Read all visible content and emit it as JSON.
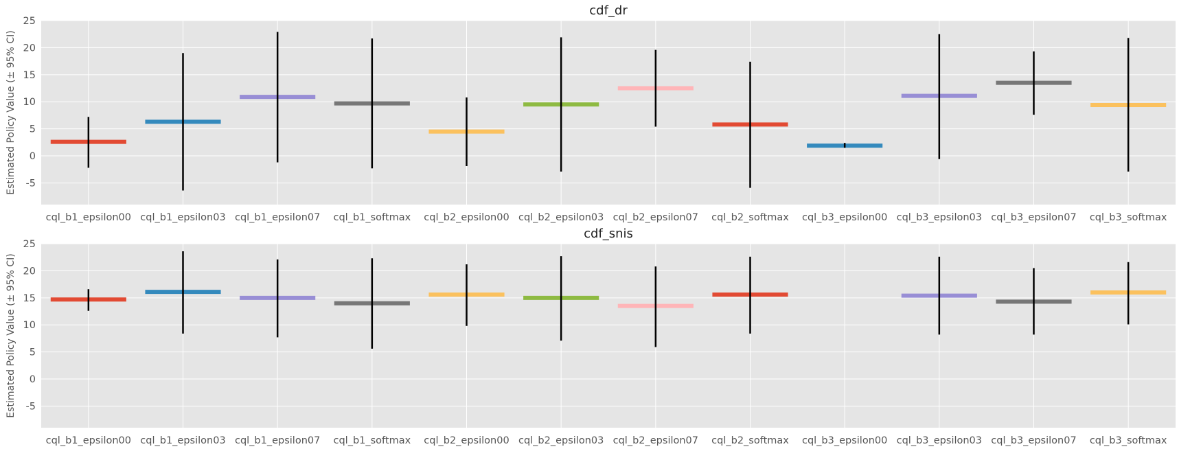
{
  "colors": {
    "background": "#e5e5e5",
    "grid": "#ffffff",
    "errorbar": "#000000",
    "palette": [
      "#E24A33",
      "#348ABD",
      "#988ED5",
      "#777777",
      "#FBC15E",
      "#8EBA42",
      "#FFB5B8"
    ]
  },
  "chart_data": [
    {
      "type": "errorbar",
      "title": "cdf_dr",
      "ylabel": "Estimated Policy Value (± 95% CI)",
      "xlabel": "",
      "ylim": [
        -9,
        25
      ],
      "yticks": [
        -5,
        0,
        5,
        10,
        15,
        20,
        25
      ],
      "grid": true,
      "categories": [
        "cql_b1_epsilon00",
        "cql_b1_epsilon03",
        "cql_b1_epsilon07",
        "cql_b1_softmax",
        "cql_b2_epsilon00",
        "cql_b2_epsilon03",
        "cql_b2_epsilon07",
        "cql_b2_softmax",
        "cql_b3_epsilon00",
        "cql_b3_epsilon03",
        "cql_b3_epsilon07",
        "cql_b3_softmax"
      ],
      "values": [
        2.6,
        6.3,
        10.9,
        9.7,
        4.5,
        9.5,
        12.5,
        5.8,
        1.9,
        11.1,
        13.5,
        9.4
      ],
      "ci_low": [
        -2.2,
        -6.4,
        -1.2,
        -2.3,
        -1.9,
        -2.9,
        5.4,
        -5.9,
        1.5,
        -0.6,
        7.6,
        -2.9
      ],
      "ci_high": [
        7.2,
        19.0,
        22.9,
        21.7,
        10.8,
        21.9,
        19.6,
        17.4,
        2.4,
        22.5,
        19.3,
        21.8
      ]
    },
    {
      "type": "errorbar",
      "title": "cdf_snis",
      "ylabel": "Estimated Policy Value (± 95% CI)",
      "xlabel": "",
      "ylim": [
        -9,
        25
      ],
      "yticks": [
        -5,
        0,
        5,
        10,
        15,
        20,
        25
      ],
      "grid": true,
      "categories": [
        "cql_b1_epsilon00",
        "cql_b1_epsilon03",
        "cql_b1_epsilon07",
        "cql_b1_softmax",
        "cql_b2_epsilon00",
        "cql_b2_epsilon03",
        "cql_b2_epsilon07",
        "cql_b2_softmax",
        "cql_b3_epsilon00",
        "cql_b3_epsilon03",
        "cql_b3_epsilon07",
        "cql_b3_softmax"
      ],
      "values": [
        14.7,
        16.1,
        15.0,
        14.0,
        15.6,
        15.0,
        13.5,
        15.6,
        null,
        15.4,
        14.3,
        16.0
      ],
      "ci_low": [
        12.6,
        8.4,
        7.7,
        5.6,
        9.8,
        7.1,
        5.9,
        8.4,
        null,
        8.2,
        8.2,
        10.1
      ],
      "ci_high": [
        16.6,
        23.6,
        22.1,
        22.3,
        21.2,
        22.7,
        20.8,
        22.6,
        null,
        22.6,
        20.5,
        21.6
      ]
    }
  ]
}
